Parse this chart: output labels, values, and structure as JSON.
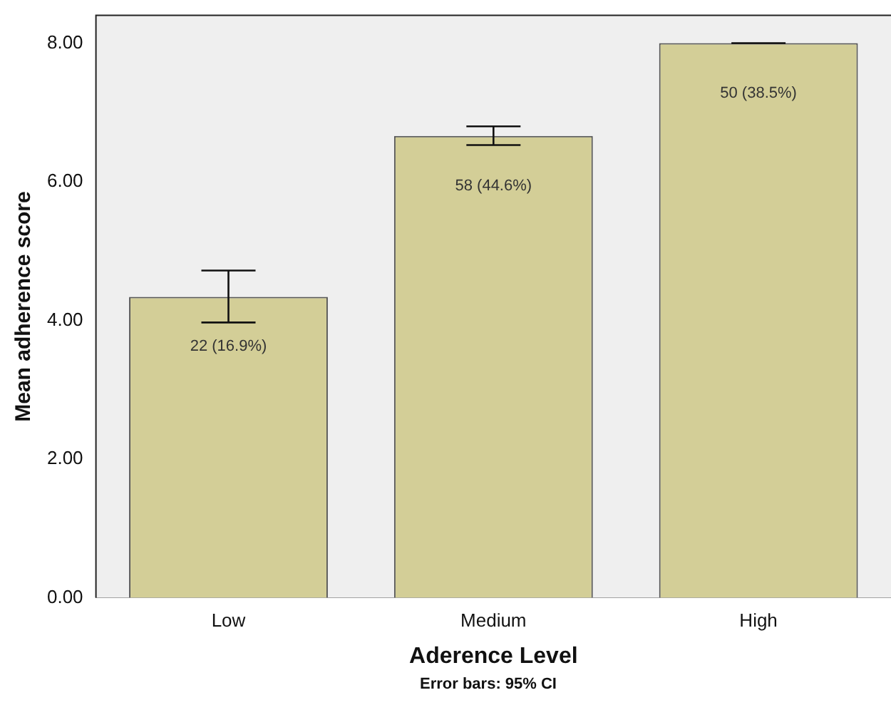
{
  "chart_data": {
    "type": "bar",
    "xlabel": "Aderence Level",
    "ylabel": "Mean adherence score",
    "annotations": [
      "Error bars: 95% CI",
      {
        "text": "22 (16.9%)",
        "x": "Low",
        "y": 4.34
      },
      {
        "text": "58 (44.6%)",
        "x": "Medium",
        "y": 6.66
      },
      {
        "text": "50 (38.5%)",
        "x": "High",
        "y": 8.0
      }
    ],
    "categories": [
      "Low",
      "Medium",
      "High"
    ],
    "values": [
      4.34,
      6.66,
      8.0
    ],
    "errors": [
      [
        3.97,
        4.72
      ],
      [
        6.53,
        6.8
      ],
      [
        8.0,
        8.0
      ]
    ],
    "color": "#d3ce97",
    "ylim": [
      0,
      8.4
    ],
    "yticks": [
      {
        "value": 0,
        "label": "0.00"
      },
      {
        "value": 2,
        "label": "2.00"
      },
      {
        "value": 4,
        "label": "4.00"
      },
      {
        "value": 6,
        "label": "6.00"
      },
      {
        "value": 8,
        "label": "8.00"
      }
    ],
    "grid": false,
    "legend": false
  }
}
